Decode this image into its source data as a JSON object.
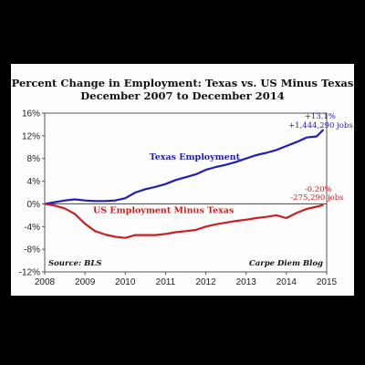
{
  "chart_data": {
    "type": "line",
    "title": "Percent Change in Employment: Texas vs. US Minus Texas",
    "subtitle": "December 2007 to December 2014",
    "xlabel": "",
    "ylabel": "",
    "xlim": [
      2008,
      2015
    ],
    "ylim": [
      -12,
      16
    ],
    "x_ticks": [
      "2008",
      "2009",
      "2010",
      "2011",
      "2012",
      "2013",
      "2014",
      "2015"
    ],
    "y_ticks": [
      "16%",
      "12%",
      "8%",
      "4%",
      "0%",
      "-4%",
      "-8%",
      "-12%"
    ],
    "grid": false,
    "series": [
      {
        "name": "Texas Employment",
        "color": "#1f1fb4",
        "x": [
          2008,
          2008.25,
          2008.5,
          2008.75,
          2009,
          2009.25,
          2009.5,
          2009.75,
          2010,
          2010.25,
          2010.5,
          2010.75,
          2011,
          2011.25,
          2011.5,
          2011.75,
          2012,
          2012.25,
          2012.5,
          2012.75,
          2013,
          2013.25,
          2013.5,
          2013.75,
          2014,
          2014.25,
          2014.5,
          2014.75,
          2014.92
        ],
        "y": [
          0,
          0.3,
          0.6,
          0.8,
          0.6,
          0.5,
          0.5,
          0.6,
          1.0,
          2.0,
          2.6,
          3.0,
          3.5,
          4.2,
          4.7,
          5.2,
          6.0,
          6.5,
          6.9,
          7.4,
          8.0,
          8.6,
          9.0,
          9.5,
          10.2,
          10.9,
          11.7,
          11.9,
          13.1
        ]
      },
      {
        "name": "US Employment Minus Texas",
        "color": "#cc1f1f",
        "x": [
          2008,
          2008.25,
          2008.5,
          2008.75,
          2009,
          2009.25,
          2009.5,
          2009.75,
          2010,
          2010.25,
          2010.5,
          2010.75,
          2011,
          2011.25,
          2011.5,
          2011.75,
          2012,
          2012.25,
          2012.5,
          2012.75,
          2013,
          2013.25,
          2013.5,
          2013.75,
          2014,
          2014.25,
          2014.5,
          2014.75,
          2014.92
        ],
        "y": [
          0,
          -0.3,
          -0.8,
          -1.8,
          -3.5,
          -4.8,
          -5.4,
          -5.8,
          -6.0,
          -5.5,
          -5.5,
          -5.5,
          -5.3,
          -5.0,
          -4.8,
          -4.6,
          -4.0,
          -3.6,
          -3.3,
          -3.0,
          -2.8,
          -2.5,
          -2.3,
          -2.0,
          -2.5,
          -1.6,
          -0.9,
          -0.5,
          -0.2
        ]
      }
    ],
    "annotations": {
      "texas_label": "Texas Employment",
      "us_label": "US Employment Minus Texas",
      "texas_pct": "+13.1%",
      "texas_jobs": "+1,444,290 jobs",
      "us_pct": "-0.20%",
      "us_jobs": "-275,290 jobs",
      "source": "Source: BLS",
      "credit": "Carpe Diem Blog"
    }
  }
}
